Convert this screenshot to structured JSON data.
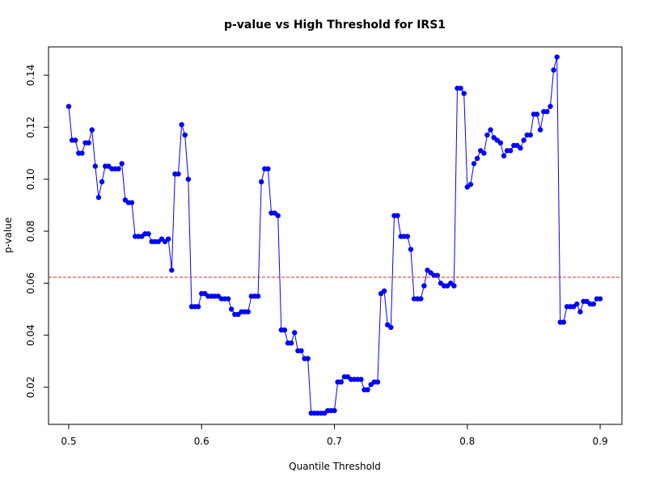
{
  "chart_data": {
    "type": "line",
    "title": "p-value vs High Threshold for IRS1",
    "x_label": "Quantile Threshold",
    "y_label": "p-value",
    "x": [
      0.5,
      0.5025,
      0.505,
      0.5075,
      0.51,
      0.5125,
      0.515,
      0.5175,
      0.52,
      0.5225,
      0.525,
      0.5275,
      0.53,
      0.5325,
      0.535,
      0.5375,
      0.54,
      0.5425,
      0.545,
      0.5475,
      0.55,
      0.5525,
      0.555,
      0.5575,
      0.56,
      0.5625,
      0.565,
      0.5675,
      0.57,
      0.5725,
      0.575,
      0.5775,
      0.58,
      0.5825,
      0.585,
      0.5875,
      0.59,
      0.5925,
      0.595,
      0.5975,
      0.6,
      0.6025,
      0.605,
      0.6075,
      0.61,
      0.6125,
      0.615,
      0.6175,
      0.62,
      0.6225,
      0.625,
      0.6275,
      0.63,
      0.6325,
      0.635,
      0.6375,
      0.64,
      0.6425,
      0.645,
      0.6475,
      0.65,
      0.6525,
      0.655,
      0.6575,
      0.66,
      0.6625,
      0.665,
      0.6675,
      0.67,
      0.6725,
      0.675,
      0.6775,
      0.68,
      0.6825,
      0.685,
      0.6875,
      0.69,
      0.6925,
      0.695,
      0.6975,
      0.7,
      0.7025,
      0.705,
      0.7075,
      0.71,
      0.7125,
      0.715,
      0.7175,
      0.72,
      0.7225,
      0.725,
      0.7275,
      0.73,
      0.7325,
      0.735,
      0.7375,
      0.74,
      0.7425,
      0.745,
      0.7475,
      0.75,
      0.7525,
      0.755,
      0.7575,
      0.76,
      0.7625,
      0.765,
      0.7675,
      0.77,
      0.7725,
      0.775,
      0.7775,
      0.78,
      0.7825,
      0.785,
      0.7875,
      0.79,
      0.7925,
      0.795,
      0.7975,
      0.8,
      0.8025,
      0.805,
      0.8075,
      0.81,
      0.8125,
      0.815,
      0.8175,
      0.82,
      0.8225,
      0.825,
      0.8275,
      0.83,
      0.8325,
      0.835,
      0.8375,
      0.84,
      0.8425,
      0.845,
      0.8475,
      0.85,
      0.8525,
      0.855,
      0.8575,
      0.86,
      0.8625,
      0.865,
      0.8675,
      0.87,
      0.8725,
      0.875,
      0.8775,
      0.88,
      0.8825,
      0.885,
      0.8875,
      0.89,
      0.8925,
      0.895,
      0.8975,
      0.9
    ],
    "series": [
      {
        "color": "#0000ff",
        "values": [
          0.128,
          0.115,
          0.115,
          0.11,
          0.11,
          0.114,
          0.114,
          0.119,
          0.105,
          0.093,
          0.099,
          0.105,
          0.105,
          0.104,
          0.104,
          0.104,
          0.106,
          0.092,
          0.091,
          0.091,
          0.078,
          0.078,
          0.078,
          0.079,
          0.079,
          0.076,
          0.076,
          0.076,
          0.077,
          0.076,
          0.077,
          0.065,
          0.102,
          0.102,
          0.121,
          0.117,
          0.1,
          0.051,
          0.051,
          0.051,
          0.056,
          0.056,
          0.055,
          0.055,
          0.055,
          0.055,
          0.054,
          0.054,
          0.054,
          0.05,
          0.048,
          0.048,
          0.049,
          0.049,
          0.049,
          0.055,
          0.055,
          0.055,
          0.099,
          0.104,
          0.104,
          0.087,
          0.087,
          0.086,
          0.042,
          0.042,
          0.037,
          0.037,
          0.041,
          0.034,
          0.034,
          0.031,
          0.031,
          0.01,
          0.01,
          0.01,
          0.01,
          0.01,
          0.011,
          0.011,
          0.011,
          0.022,
          0.022,
          0.024,
          0.024,
          0.023,
          0.023,
          0.023,
          0.023,
          0.019,
          0.019,
          0.021,
          0.022,
          0.022,
          0.056,
          0.057,
          0.044,
          0.043,
          0.086,
          0.086,
          0.078,
          0.078,
          0.078,
          0.073,
          0.054,
          0.054,
          0.054,
          0.059,
          0.065,
          0.064,
          0.063,
          0.063,
          0.06,
          0.059,
          0.059,
          0.06,
          0.059,
          0.135,
          0.135,
          0.133,
          0.097,
          0.098,
          0.106,
          0.108,
          0.111,
          0.11,
          0.117,
          0.119,
          0.116,
          0.115,
          0.114,
          0.109,
          0.111,
          0.111,
          0.113,
          0.113,
          0.112,
          0.115,
          0.117,
          0.117,
          0.125,
          0.125,
          0.119,
          0.126,
          0.126,
          0.128,
          0.142,
          0.147,
          0.045,
          0.045,
          0.051,
          0.051,
          0.051,
          0.052,
          0.049,
          0.053,
          0.053,
          0.052,
          0.052,
          0.054,
          0.054
        ]
      }
    ],
    "hline": 0.0623,
    "hline_color": "#d62728",
    "xlim": [
      0.4848,
      0.9164
    ],
    "xticks": [
      0.5,
      0.6,
      0.7,
      0.8,
      0.9
    ],
    "ylim": [
      0.0057,
      0.1509
    ],
    "yticks": [
      0.02,
      0.04,
      0.06,
      0.08,
      {
        "value": 0.1,
        "label": "0.10"
      },
      0.12,
      0.14
    ]
  }
}
